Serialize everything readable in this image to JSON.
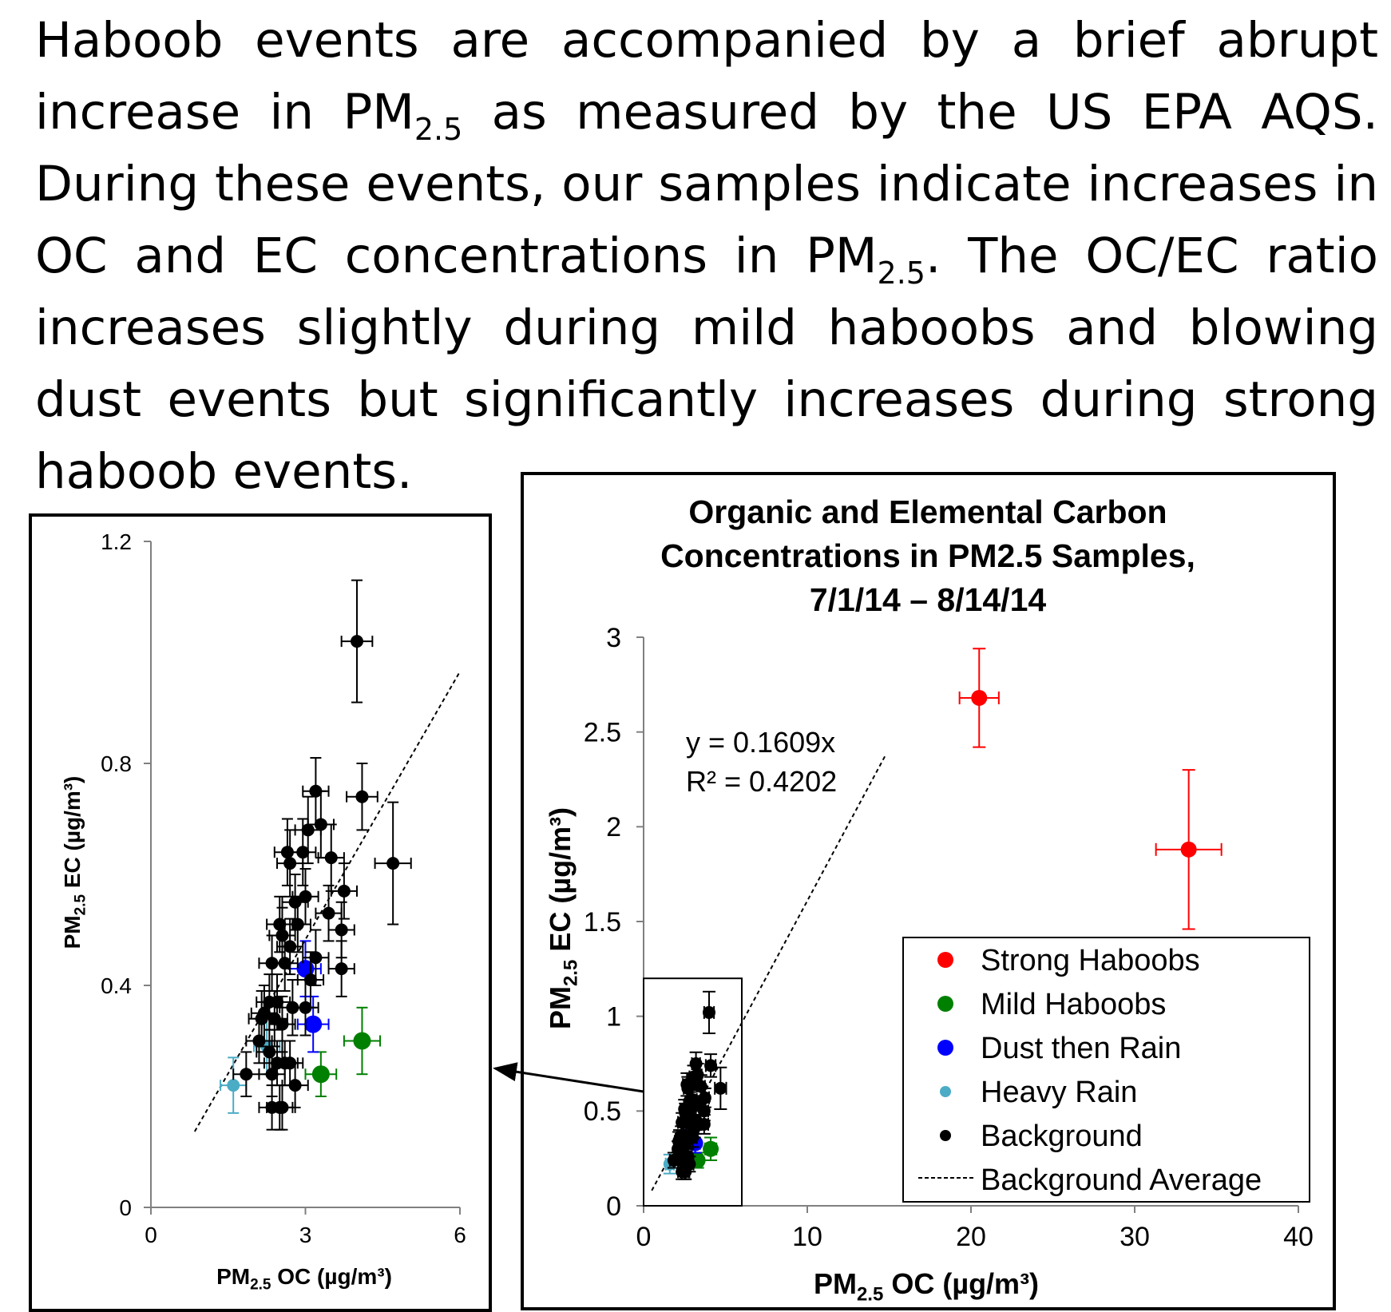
{
  "paragraph": {
    "s1a": "Haboob events are accompanied by a brief abrupt increase in PM",
    "s1sub": "2.5",
    "s1b": " as measured by the US EPA AQS.",
    "s2a": "During these events, our samples indicate increases in OC and EC concentrations in PM",
    "s2sub": "2.5",
    "s2b": ". The OC/EC ratio increases slightly during mild haboobs and blowing dust events but significantly increases during strong haboob events."
  },
  "colors": {
    "strong": "#ff0000",
    "mild": "#008000",
    "dust": "#0000ff",
    "rain": "#4bacc6",
    "background": "#000000",
    "axis": "#808080"
  },
  "chart_data": [
    {
      "id": "main",
      "type": "scatter",
      "title": [
        "Organic and Elemental Carbon",
        "Concentrations in PM2.5 Samples,",
        "7/1/14 – 8/14/14"
      ],
      "xlabel": "PM2.5 OC (µg/m³)",
      "ylabel": "PM2.5 EC (µg/m³)",
      "xlim": [
        0,
        40
      ],
      "ylim": [
        0,
        3
      ],
      "xticks": [
        "0",
        "10",
        "20",
        "30",
        "40"
      ],
      "yticks": [
        "0",
        "0.5",
        "1",
        "1.5",
        "2",
        "2.5",
        "3"
      ],
      "trendline": {
        "slope": 0.1609,
        "x_range": [
          0.5,
          14.8
        ],
        "equation": "y = 0.1609x",
        "r2": "R² = 0.4202"
      },
      "inset_box": {
        "x": [
          0,
          6
        ],
        "y": [
          0,
          1.2
        ]
      },
      "legend": {
        "position": "bottom-right",
        "entries": [
          "Strong Haboobs",
          "Mild Haboobs",
          "Dust then Rain",
          "Heavy Rain",
          "Background",
          "Background Average"
        ]
      },
      "series": [
        {
          "name": "Strong Haboobs",
          "key": "strong",
          "points": [
            {
              "x": 20.5,
              "y": 2.68,
              "ex": 1.2,
              "ey": 0.26
            },
            {
              "x": 33.3,
              "y": 1.88,
              "ex": 2.0,
              "ey": 0.42
            }
          ]
        },
        {
          "name": "Mild Haboobs",
          "key": "mild",
          "points": [
            {
              "x": 3.3,
              "y": 0.24,
              "ex": 0.3,
              "ey": 0.04
            },
            {
              "x": 4.1,
              "y": 0.3,
              "ex": 0.35,
              "ey": 0.06
            }
          ]
        },
        {
          "name": "Dust then Rain",
          "key": "dust",
          "points": [
            {
              "x": 3.0,
              "y": 0.43,
              "ex": 0.3,
              "ey": 0.05
            },
            {
              "x": 3.15,
              "y": 0.33,
              "ex": 0.3,
              "ey": 0.05
            }
          ]
        },
        {
          "name": "Heavy Rain",
          "key": "rain",
          "points": [
            {
              "x": 1.6,
              "y": 0.22,
              "ex": 0.25,
              "ey": 0.05
            },
            {
              "x": 2.25,
              "y": 0.29,
              "ex": 0.25,
              "ey": 0.05
            }
          ]
        },
        {
          "name": "Background",
          "key": "background",
          "points": [
            {
              "x": 4.0,
              "y": 1.02,
              "ex": 0.3,
              "ey": 0.11
            },
            {
              "x": 3.2,
              "y": 0.75,
              "ex": 0.25,
              "ey": 0.06
            },
            {
              "x": 4.1,
              "y": 0.74,
              "ex": 0.3,
              "ey": 0.06
            },
            {
              "x": 3.3,
              "y": 0.69,
              "ex": 0.25,
              "ey": 0.06
            },
            {
              "x": 3.05,
              "y": 0.68,
              "ex": 0.25,
              "ey": 0.06
            },
            {
              "x": 2.65,
              "y": 0.64,
              "ex": 0.25,
              "ey": 0.06
            },
            {
              "x": 2.95,
              "y": 0.64,
              "ex": 0.25,
              "ey": 0.06
            },
            {
              "x": 3.5,
              "y": 0.63,
              "ex": 0.25,
              "ey": 0.06
            },
            {
              "x": 2.7,
              "y": 0.62,
              "ex": 0.25,
              "ey": 0.06
            },
            {
              "x": 4.7,
              "y": 0.62,
              "ex": 0.35,
              "ey": 0.11
            },
            {
              "x": 3.75,
              "y": 0.57,
              "ex": 0.25,
              "ey": 0.05
            },
            {
              "x": 3.0,
              "y": 0.56,
              "ex": 0.25,
              "ey": 0.05
            },
            {
              "x": 2.8,
              "y": 0.55,
              "ex": 0.25,
              "ey": 0.05
            },
            {
              "x": 3.45,
              "y": 0.53,
              "ex": 0.25,
              "ey": 0.05
            },
            {
              "x": 2.5,
              "y": 0.51,
              "ex": 0.25,
              "ey": 0.05
            },
            {
              "x": 2.85,
              "y": 0.51,
              "ex": 0.25,
              "ey": 0.05
            },
            {
              "x": 3.7,
              "y": 0.5,
              "ex": 0.25,
              "ey": 0.05
            },
            {
              "x": 2.55,
              "y": 0.49,
              "ex": 0.25,
              "ey": 0.05
            },
            {
              "x": 2.7,
              "y": 0.47,
              "ex": 0.25,
              "ey": 0.05
            },
            {
              "x": 3.2,
              "y": 0.45,
              "ex": 0.25,
              "ey": 0.05
            },
            {
              "x": 2.35,
              "y": 0.44,
              "ex": 0.25,
              "ey": 0.05
            },
            {
              "x": 2.6,
              "y": 0.44,
              "ex": 0.25,
              "ey": 0.05
            },
            {
              "x": 3.7,
              "y": 0.43,
              "ex": 0.25,
              "ey": 0.05
            },
            {
              "x": 3.1,
              "y": 0.41,
              "ex": 0.25,
              "ey": 0.05
            },
            {
              "x": 2.3,
              "y": 0.37,
              "ex": 0.25,
              "ey": 0.05
            },
            {
              "x": 2.45,
              "y": 0.37,
              "ex": 0.25,
              "ey": 0.05
            },
            {
              "x": 2.75,
              "y": 0.36,
              "ex": 0.25,
              "ey": 0.05
            },
            {
              "x": 3.0,
              "y": 0.36,
              "ex": 0.25,
              "ey": 0.05
            },
            {
              "x": 2.2,
              "y": 0.35,
              "ex": 0.25,
              "ey": 0.05
            },
            {
              "x": 2.15,
              "y": 0.34,
              "ex": 0.25,
              "ey": 0.05
            },
            {
              "x": 2.4,
              "y": 0.34,
              "ex": 0.25,
              "ey": 0.05
            },
            {
              "x": 2.55,
              "y": 0.33,
              "ex": 0.25,
              "ey": 0.05
            },
            {
              "x": 2.1,
              "y": 0.3,
              "ex": 0.25,
              "ey": 0.04
            },
            {
              "x": 2.3,
              "y": 0.28,
              "ex": 0.25,
              "ey": 0.04
            },
            {
              "x": 2.45,
              "y": 0.26,
              "ex": 0.25,
              "ey": 0.04
            },
            {
              "x": 2.6,
              "y": 0.26,
              "ex": 0.25,
              "ey": 0.04
            },
            {
              "x": 2.7,
              "y": 0.26,
              "ex": 0.25,
              "ey": 0.04
            },
            {
              "x": 1.85,
              "y": 0.24,
              "ex": 0.25,
              "ey": 0.04
            },
            {
              "x": 2.35,
              "y": 0.24,
              "ex": 0.25,
              "ey": 0.04
            },
            {
              "x": 2.8,
              "y": 0.22,
              "ex": 0.25,
              "ey": 0.04
            },
            {
              "x": 2.5,
              "y": 0.18,
              "ex": 0.25,
              "ey": 0.04
            },
            {
              "x": 2.35,
              "y": 0.18,
              "ex": 0.25,
              "ey": 0.04
            },
            {
              "x": 2.55,
              "y": 0.18,
              "ex": 0.25,
              "ey": 0.04
            }
          ]
        }
      ]
    },
    {
      "id": "inset",
      "type": "scatter",
      "xlabel": "PM2.5 OC (µg/m³)",
      "ylabel": "PM2.5 EC (µg/m³)",
      "xlim": [
        0,
        6
      ],
      "ylim": [
        0,
        1.2
      ],
      "xticks": [
        "0",
        "3",
        "6"
      ],
      "yticks": [
        "0",
        "0.4",
        "0.8",
        "1.2"
      ],
      "trendline": {
        "slope": 0.1609,
        "x_range": [
          0.85,
          6.0
        ]
      },
      "note": "zoomed view of the same points for OC 0–6, EC 0–1.2"
    }
  ]
}
